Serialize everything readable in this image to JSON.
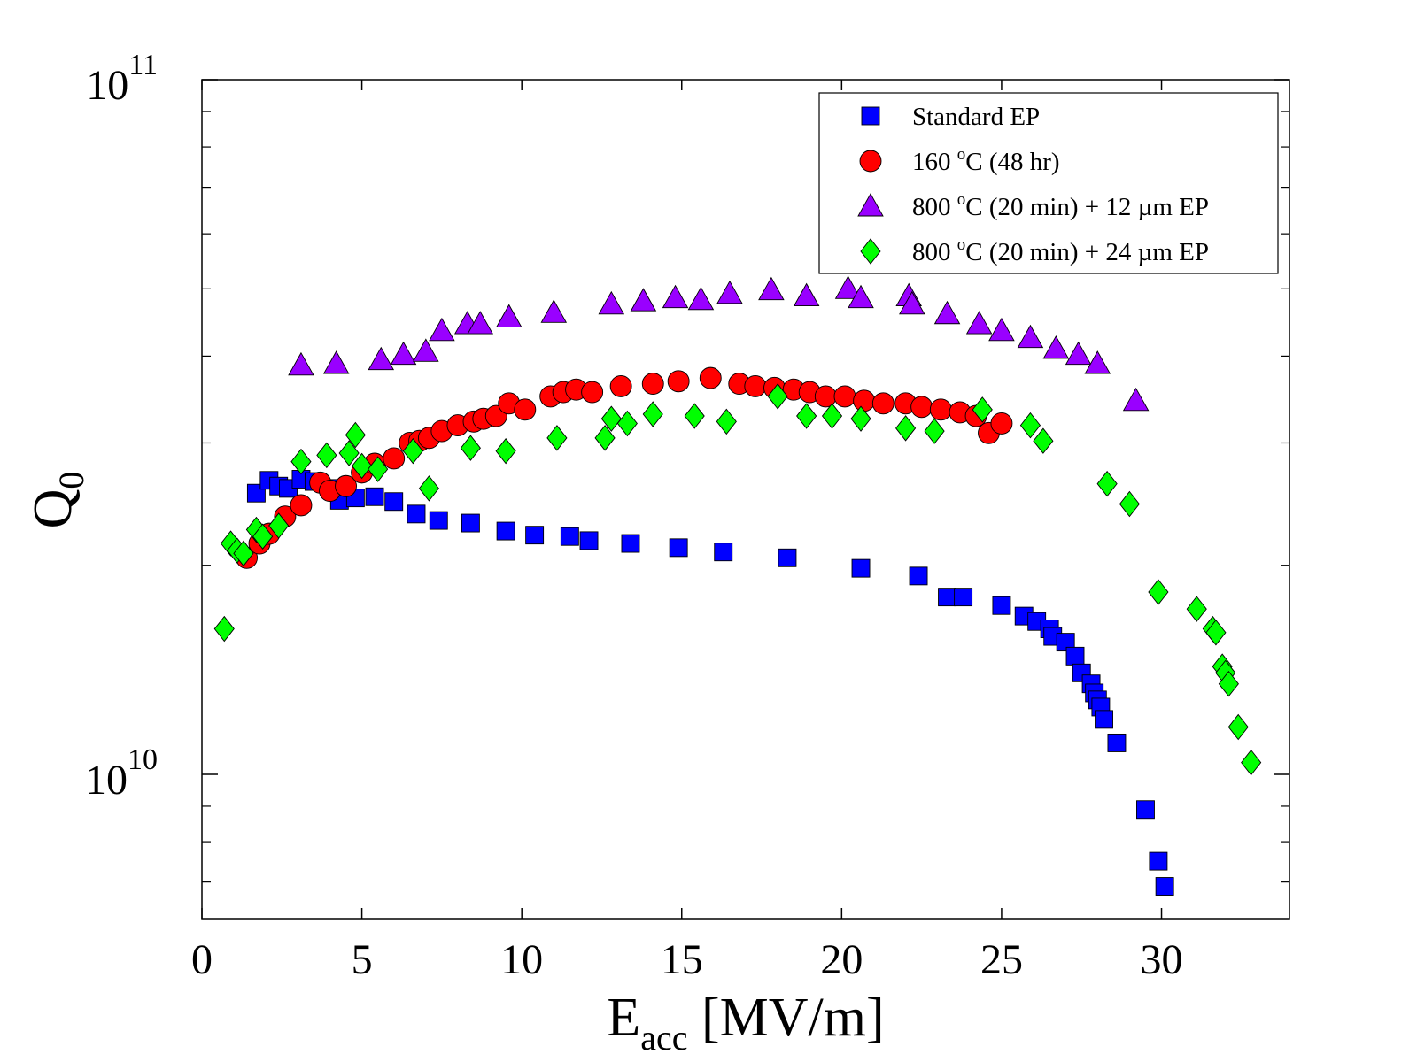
{
  "chart_data": {
    "type": "scatter",
    "title": "",
    "xlabel": {
      "main": "E",
      "sub": "acc",
      "rest": " [MV/m]"
    },
    "ylabel": {
      "main": "Q",
      "sub": "0"
    },
    "xlim": [
      0,
      34
    ],
    "ylim": [
      6200000000.0,
      100000000000.0
    ],
    "yscale": "log",
    "x_ticks": [
      0,
      5,
      10,
      15,
      20,
      25,
      30
    ],
    "y_major_ticks": [
      {
        "value": 10000000000.0,
        "base": "10",
        "exp": "10"
      },
      {
        "value": 100000000000.0,
        "base": "10",
        "exp": "11"
      }
    ],
    "legend_position": "top-right",
    "series": [
      {
        "name": "Standard EP",
        "legend": {
          "pre": "Standard EP",
          "sup": "",
          "post": ""
        },
        "marker": "square",
        "color": "#0000ff",
        "points": [
          [
            1.7,
            25400000000.0
          ],
          [
            2.1,
            26500000000.0
          ],
          [
            2.4,
            26000000000.0
          ],
          [
            2.7,
            25800000000.0
          ],
          [
            3.1,
            26600000000.0
          ],
          [
            3.5,
            26400000000.0
          ],
          [
            4.0,
            25800000000.0
          ],
          [
            4.3,
            24800000000.0
          ],
          [
            4.8,
            25000000000.0
          ],
          [
            5.4,
            25100000000.0
          ],
          [
            6.0,
            24700000000.0
          ],
          [
            6.7,
            23700000000.0
          ],
          [
            7.4,
            23200000000.0
          ],
          [
            8.4,
            23000000000.0
          ],
          [
            9.5,
            22400000000.0
          ],
          [
            10.4,
            22100000000.0
          ],
          [
            11.5,
            22000000000.0
          ],
          [
            12.1,
            21700000000.0
          ],
          [
            13.4,
            21500000000.0
          ],
          [
            14.9,
            21200000000.0
          ],
          [
            16.3,
            20900000000.0
          ],
          [
            18.3,
            20500000000.0
          ],
          [
            20.6,
            19800000000.0
          ],
          [
            22.4,
            19300000000.0
          ],
          [
            23.3,
            18000000000.0
          ],
          [
            23.8,
            18000000000.0
          ],
          [
            25.0,
            17500000000.0
          ],
          [
            25.7,
            16900000000.0
          ],
          [
            26.1,
            16600000000.0
          ],
          [
            26.5,
            16200000000.0
          ],
          [
            26.6,
            15800000000.0
          ],
          [
            27.0,
            15500000000.0
          ],
          [
            27.3,
            14800000000.0
          ],
          [
            27.5,
            14000000000.0
          ],
          [
            27.8,
            13500000000.0
          ],
          [
            27.9,
            13100000000.0
          ],
          [
            28.0,
            12800000000.0
          ],
          [
            28.1,
            12500000000.0
          ],
          [
            28.2,
            12000000000.0
          ],
          [
            28.6,
            11100000000.0
          ],
          [
            29.5,
            8900000000.0
          ],
          [
            29.9,
            7500000000.0
          ],
          [
            30.1,
            6900000000.0
          ]
        ]
      },
      {
        "name": "160 °C (48 hr)",
        "legend": {
          "pre": "160 ",
          "sup": "o",
          "post": "C (48 hr)"
        },
        "marker": "circle",
        "color": "#ff0000",
        "points": [
          [
            1.4,
            20500000000.0
          ],
          [
            1.8,
            21500000000.0
          ],
          [
            2.1,
            22200000000.0
          ],
          [
            2.6,
            23500000000.0
          ],
          [
            3.1,
            24400000000.0
          ],
          [
            3.7,
            26300000000.0
          ],
          [
            4.0,
            25600000000.0
          ],
          [
            4.5,
            26000000000.0
          ],
          [
            5.0,
            27200000000.0
          ],
          [
            5.4,
            28000000000.0
          ],
          [
            6.0,
            28500000000.0
          ],
          [
            6.5,
            30000000000.0
          ],
          [
            6.8,
            30200000000.0
          ],
          [
            7.1,
            30500000000.0
          ],
          [
            7.5,
            31200000000.0
          ],
          [
            8.0,
            31800000000.0
          ],
          [
            8.5,
            32200000000.0
          ],
          [
            8.8,
            32500000000.0
          ],
          [
            9.2,
            32800000000.0
          ],
          [
            9.6,
            34200000000.0
          ],
          [
            10.1,
            33500000000.0
          ],
          [
            10.9,
            35000000000.0
          ],
          [
            11.3,
            35500000000.0
          ],
          [
            11.7,
            35800000000.0
          ],
          [
            12.2,
            35500000000.0
          ],
          [
            13.1,
            36200000000.0
          ],
          [
            14.1,
            36500000000.0
          ],
          [
            14.9,
            36800000000.0
          ],
          [
            15.9,
            37200000000.0
          ],
          [
            16.8,
            36500000000.0
          ],
          [
            17.3,
            36200000000.0
          ],
          [
            17.9,
            36000000000.0
          ],
          [
            18.5,
            35800000000.0
          ],
          [
            19.0,
            35500000000.0
          ],
          [
            19.5,
            35000000000.0
          ],
          [
            20.1,
            35000000000.0
          ],
          [
            20.7,
            34500000000.0
          ],
          [
            21.3,
            34200000000.0
          ],
          [
            22.0,
            34200000000.0
          ],
          [
            22.5,
            33800000000.0
          ],
          [
            23.1,
            33500000000.0
          ],
          [
            23.7,
            33200000000.0
          ],
          [
            24.2,
            32800000000.0
          ],
          [
            24.6,
            31000000000.0
          ],
          [
            25.0,
            32000000000.0
          ]
        ]
      },
      {
        "name": "800 °C (20 min) + 12 µm EP",
        "legend": {
          "pre": "800 ",
          "sup": "o",
          "post": "C (20 min) + 12 µm EP"
        },
        "marker": "triangle",
        "color": "#9900ff",
        "points": [
          [
            3.1,
            38800000000.0
          ],
          [
            4.2,
            39000000000.0
          ],
          [
            5.6,
            39500000000.0
          ],
          [
            6.3,
            40200000000.0
          ],
          [
            7.0,
            40600000000.0
          ],
          [
            7.5,
            43500000000.0
          ],
          [
            8.3,
            44500000000.0
          ],
          [
            8.7,
            44500000000.0
          ],
          [
            9.6,
            45500000000.0
          ],
          [
            11.0,
            46200000000.0
          ],
          [
            12.8,
            47500000000.0
          ],
          [
            13.8,
            48000000000.0
          ],
          [
            14.8,
            48500000000.0
          ],
          [
            15.6,
            48200000000.0
          ],
          [
            16.5,
            49200000000.0
          ],
          [
            17.8,
            49800000000.0
          ],
          [
            18.9,
            48800000000.0
          ],
          [
            20.2,
            50000000000.0
          ],
          [
            20.6,
            48500000000.0
          ],
          [
            22.1,
            48800000000.0
          ],
          [
            22.2,
            47500000000.0
          ],
          [
            23.3,
            46000000000.0
          ],
          [
            24.3,
            44500000000.0
          ],
          [
            25.0,
            43500000000.0
          ],
          [
            25.9,
            42500000000.0
          ],
          [
            26.7,
            41000000000.0
          ],
          [
            27.4,
            40200000000.0
          ],
          [
            28.0,
            39000000000.0
          ],
          [
            29.2,
            34500000000.0
          ]
        ]
      },
      {
        "name": "800 °C (20 min) + 24 µm EP",
        "legend": {
          "pre": "800 ",
          "sup": "o",
          "post": "C (20 min) + 24 µm EP"
        },
        "marker": "diamond",
        "color": "#00ff00",
        "points": [
          [
            0.7,
            16200000000.0
          ],
          [
            0.9,
            21500000000.0
          ],
          [
            1.1,
            21000000000.0
          ],
          [
            1.3,
            20800000000.0
          ],
          [
            1.7,
            22500000000.0
          ],
          [
            1.9,
            22000000000.0
          ],
          [
            2.4,
            22800000000.0
          ],
          [
            3.1,
            28200000000.0
          ],
          [
            3.9,
            28800000000.0
          ],
          [
            4.6,
            29000000000.0
          ],
          [
            4.8,
            30800000000.0
          ],
          [
            5.0,
            27800000000.0
          ],
          [
            5.5,
            27500000000.0
          ],
          [
            6.6,
            29200000000.0
          ],
          [
            7.1,
            25800000000.0
          ],
          [
            8.4,
            29500000000.0
          ],
          [
            9.5,
            29200000000.0
          ],
          [
            11.1,
            30500000000.0
          ],
          [
            12.6,
            30500000000.0
          ],
          [
            12.8,
            32500000000.0
          ],
          [
            13.3,
            32000000000.0
          ],
          [
            14.1,
            33000000000.0
          ],
          [
            15.4,
            32800000000.0
          ],
          [
            16.4,
            32200000000.0
          ],
          [
            18.0,
            35000000000.0
          ],
          [
            18.9,
            32800000000.0
          ],
          [
            19.7,
            32800000000.0
          ],
          [
            20.6,
            32500000000.0
          ],
          [
            22.0,
            31500000000.0
          ],
          [
            22.9,
            31200000000.0
          ],
          [
            24.4,
            33500000000.0
          ],
          [
            25.9,
            31800000000.0
          ],
          [
            26.3,
            30200000000.0
          ],
          [
            28.3,
            26200000000.0
          ],
          [
            29.0,
            24500000000.0
          ],
          [
            29.9,
            18300000000.0
          ],
          [
            31.1,
            17300000000.0
          ],
          [
            31.6,
            16200000000.0
          ],
          [
            31.7,
            16000000000.0
          ],
          [
            31.9,
            14300000000.0
          ],
          [
            32.0,
            14000000000.0
          ],
          [
            32.1,
            13500000000.0
          ],
          [
            32.4,
            11700000000.0
          ],
          [
            32.8,
            10400000000.0
          ]
        ]
      }
    ]
  }
}
